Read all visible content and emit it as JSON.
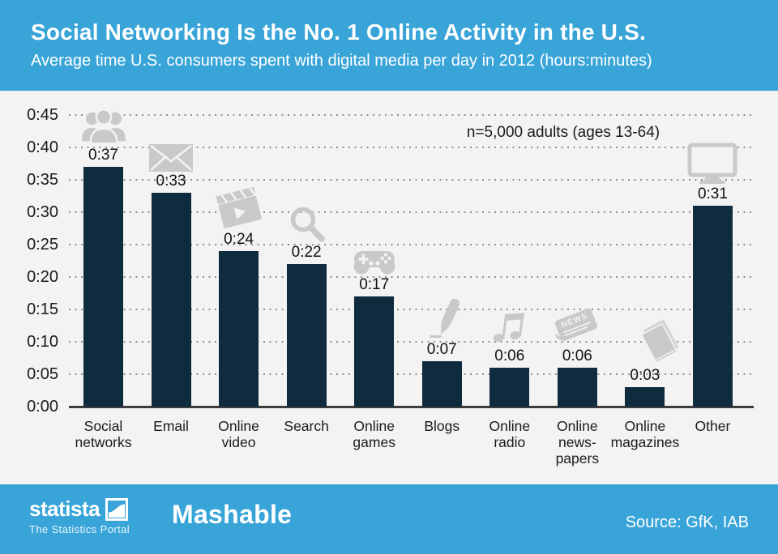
{
  "header": {
    "title": "Social Networking Is the No. 1 Online Activity in the U.S.",
    "subtitle": "Average time U.S. consumers spent with digital media per day in 2012 (hours:minutes)"
  },
  "chart_data": {
    "type": "bar",
    "title": "Social Networking Is the No. 1 Online Activity in the U.S.",
    "subtitle": "Average time U.S. consumers spent with digital media per day in 2012 (hours:minutes)",
    "annotation": "n=5,000 adults (ages 13-64)",
    "categories": [
      "Social networks",
      "Email",
      "Online video",
      "Search",
      "Online games",
      "Blogs",
      "Online radio",
      "Online news-papers",
      "Online magazines",
      "Other"
    ],
    "category_lines": [
      [
        "Social",
        "networks"
      ],
      [
        "Email"
      ],
      [
        "Online",
        "video"
      ],
      [
        "Search"
      ],
      [
        "Online",
        "games"
      ],
      [
        "Blogs"
      ],
      [
        "Online",
        "radio"
      ],
      [
        "Online",
        "news-",
        "papers"
      ],
      [
        "Online",
        "magazines"
      ],
      [
        "Other"
      ]
    ],
    "values_minutes": [
      37,
      33,
      24,
      22,
      17,
      7,
      6,
      6,
      3,
      31
    ],
    "value_labels": [
      "0:37",
      "0:33",
      "0:24",
      "0:22",
      "0:17",
      "0:07",
      "0:06",
      "0:06",
      "0:03",
      "0:31"
    ],
    "icons": [
      "people-group-icon",
      "envelope-icon",
      "clapperboard-icon",
      "magnifier-icon",
      "gamepad-icon",
      "pen-icon",
      "music-note-icon",
      "newspaper-icon",
      "magazines-icon",
      "monitor-icon"
    ],
    "newspaper_icon_text": "NEWS",
    "y_ticks": [
      "0:00",
      "0:05",
      "0:10",
      "0:15",
      "0:20",
      "0:25",
      "0:30",
      "0:35",
      "0:40",
      "0:45"
    ],
    "ylim_minutes": [
      0,
      45
    ],
    "grid": "dotted horizontal",
    "legend": "none",
    "bar_color": "#0f2b3e",
    "icon_color": "#c9c9c9",
    "background_color": "#f3f3f3",
    "accent_color": "#38a4d8"
  },
  "footer": {
    "statista_wordmark": "statista",
    "statista_tagline": "The Statistics Portal",
    "partner_wordmark": "Mashable",
    "source": "Source: GfK, IAB"
  }
}
